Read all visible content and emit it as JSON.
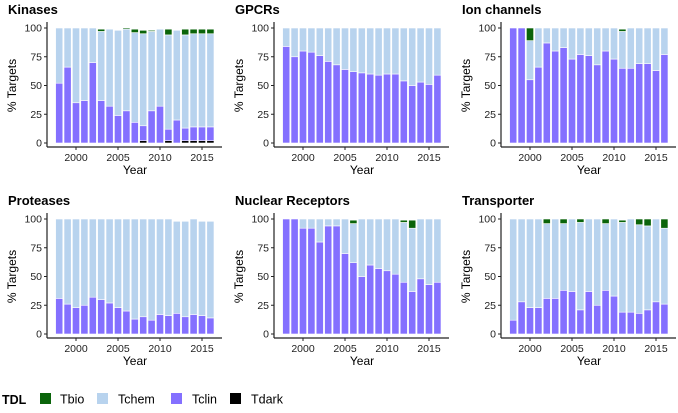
{
  "chart_data": {
    "type": "bar",
    "stacked": true,
    "years": [
      1998,
      1999,
      2000,
      2001,
      2002,
      2003,
      2004,
      2005,
      2006,
      2007,
      2008,
      2009,
      2010,
      2011,
      2012,
      2013,
      2014,
      2015,
      2016
    ],
    "xlabel": "Year",
    "ylabel": "% Targets",
    "ylim": [
      0,
      100
    ],
    "yticks": [
      0,
      25,
      50,
      75,
      100
    ],
    "xticks": [
      2000,
      2005,
      2010,
      2015
    ],
    "grid": false,
    "legend": {
      "title": "TDL",
      "placement": "bottom-left",
      "entries": [
        {
          "key": "tbio",
          "label": "Tbio",
          "color": "#0a640a"
        },
        {
          "key": "tchem",
          "label": "Tchem",
          "color": "#b8d3ee"
        },
        {
          "key": "tclin",
          "label": "Tclin",
          "color": "#8470ff"
        },
        {
          "key": "tdark",
          "label": "Tdark",
          "color": "#000000"
        }
      ]
    },
    "stack_order": [
      "tdark",
      "tclin",
      "tchem",
      "tbio"
    ],
    "panels": [
      {
        "title": "Kinases",
        "series": {
          "tdark": [
            0,
            0,
            0,
            0,
            0,
            0,
            0,
            0,
            0,
            0,
            2,
            0,
            0,
            2,
            0,
            2,
            2,
            2,
            2
          ],
          "tclin": [
            52,
            66,
            35,
            37,
            70,
            37,
            32,
            24,
            28,
            18,
            13,
            28,
            32,
            10,
            20,
            11,
            12,
            12,
            12
          ],
          "tchem": [
            48,
            34,
            65,
            63,
            30,
            60,
            67,
            74,
            71,
            78,
            80,
            69,
            67,
            82,
            78,
            81,
            81,
            81,
            81
          ],
          "tbio": [
            0,
            0,
            0,
            0,
            0,
            2,
            0,
            0,
            1,
            3,
            3,
            1,
            0,
            5,
            0,
            5,
            4,
            4,
            4
          ]
        }
      },
      {
        "title": "GPCRs",
        "series": {
          "tdark": [
            0,
            0,
            0,
            0,
            0,
            0,
            0,
            0,
            0,
            0,
            0,
            0,
            0,
            0,
            0,
            0,
            0,
            0,
            0
          ],
          "tclin": [
            84,
            75,
            80,
            79,
            76,
            71,
            68,
            64,
            62,
            61,
            60,
            59,
            60,
            60,
            54,
            50,
            53,
            51,
            59
          ],
          "tchem": [
            16,
            25,
            20,
            21,
            24,
            29,
            32,
            36,
            38,
            39,
            40,
            41,
            40,
            40,
            46,
            50,
            47,
            49,
            41
          ],
          "tbio": [
            0,
            0,
            0,
            0,
            0,
            0,
            0,
            0,
            0,
            0,
            0,
            0,
            0,
            0,
            0,
            0,
            0,
            0,
            0
          ]
        }
      },
      {
        "title": "Ion channels",
        "series": {
          "tdark": [
            0,
            0,
            0,
            0,
            0,
            0,
            0,
            0,
            0,
            0,
            0,
            0,
            0,
            0,
            0,
            0,
            0,
            0,
            0
          ],
          "tclin": [
            100,
            100,
            55,
            66,
            87,
            80,
            83,
            73,
            77,
            76,
            68,
            80,
            73,
            65,
            65,
            69,
            69,
            63,
            77
          ],
          "tchem": [
            0,
            0,
            34,
            34,
            13,
            20,
            17,
            27,
            23,
            24,
            32,
            20,
            27,
            32,
            35,
            31,
            31,
            37,
            23
          ],
          "tbio": [
            0,
            0,
            11,
            0,
            0,
            0,
            0,
            0,
            0,
            0,
            0,
            0,
            0,
            2,
            0,
            0,
            0,
            0,
            0
          ]
        }
      },
      {
        "title": "Proteases",
        "series": {
          "tdark": [
            0,
            0,
            0,
            0,
            0,
            0,
            0,
            0,
            0,
            0,
            0,
            0,
            0,
            0,
            0,
            0,
            0,
            0,
            0
          ],
          "tclin": [
            31,
            26,
            23,
            25,
            32,
            30,
            27,
            23,
            20,
            13,
            15,
            12,
            17,
            16,
            18,
            15,
            17,
            16,
            14
          ],
          "tchem": [
            69,
            74,
            77,
            75,
            68,
            70,
            73,
            77,
            80,
            87,
            85,
            88,
            83,
            84,
            80,
            83,
            83,
            82,
            84
          ],
          "tbio": [
            0,
            0,
            0,
            0,
            0,
            0,
            0,
            0,
            0,
            0,
            0,
            0,
            0,
            0,
            0,
            0,
            0,
            0,
            0
          ]
        }
      },
      {
        "title": "Nuclear Receptors",
        "series": {
          "tdark": [
            0,
            0,
            0,
            0,
            0,
            0,
            0,
            0,
            0,
            0,
            0,
            0,
            0,
            0,
            0,
            0,
            0,
            0,
            0
          ],
          "tclin": [
            100,
            100,
            92,
            92,
            80,
            94,
            94,
            70,
            62,
            50,
            60,
            57,
            55,
            52,
            45,
            37,
            48,
            43,
            45
          ],
          "tchem": [
            0,
            0,
            8,
            8,
            20,
            6,
            6,
            30,
            34,
            50,
            40,
            43,
            45,
            48,
            52,
            55,
            52,
            57,
            55
          ],
          "tbio": [
            0,
            0,
            0,
            0,
            0,
            0,
            0,
            0,
            3,
            0,
            0,
            0,
            0,
            0,
            2,
            7,
            0,
            0,
            0
          ]
        }
      },
      {
        "title": "Transporter",
        "series": {
          "tdark": [
            0,
            0,
            0,
            0,
            0,
            0,
            0,
            0,
            0,
            0,
            0,
            0,
            0,
            0,
            0,
            0,
            0,
            0,
            0
          ],
          "tclin": [
            12,
            28,
            23,
            23,
            31,
            31,
            38,
            37,
            21,
            37,
            25,
            38,
            33,
            19,
            19,
            18,
            21,
            28,
            26
          ],
          "tchem": [
            88,
            72,
            77,
            77,
            65,
            69,
            58,
            63,
            76,
            63,
            75,
            58,
            67,
            78,
            81,
            77,
            73,
            72,
            66
          ],
          "tbio": [
            0,
            0,
            0,
            0,
            4,
            0,
            4,
            0,
            3,
            0,
            0,
            4,
            0,
            2,
            0,
            5,
            6,
            0,
            8
          ]
        }
      }
    ]
  }
}
